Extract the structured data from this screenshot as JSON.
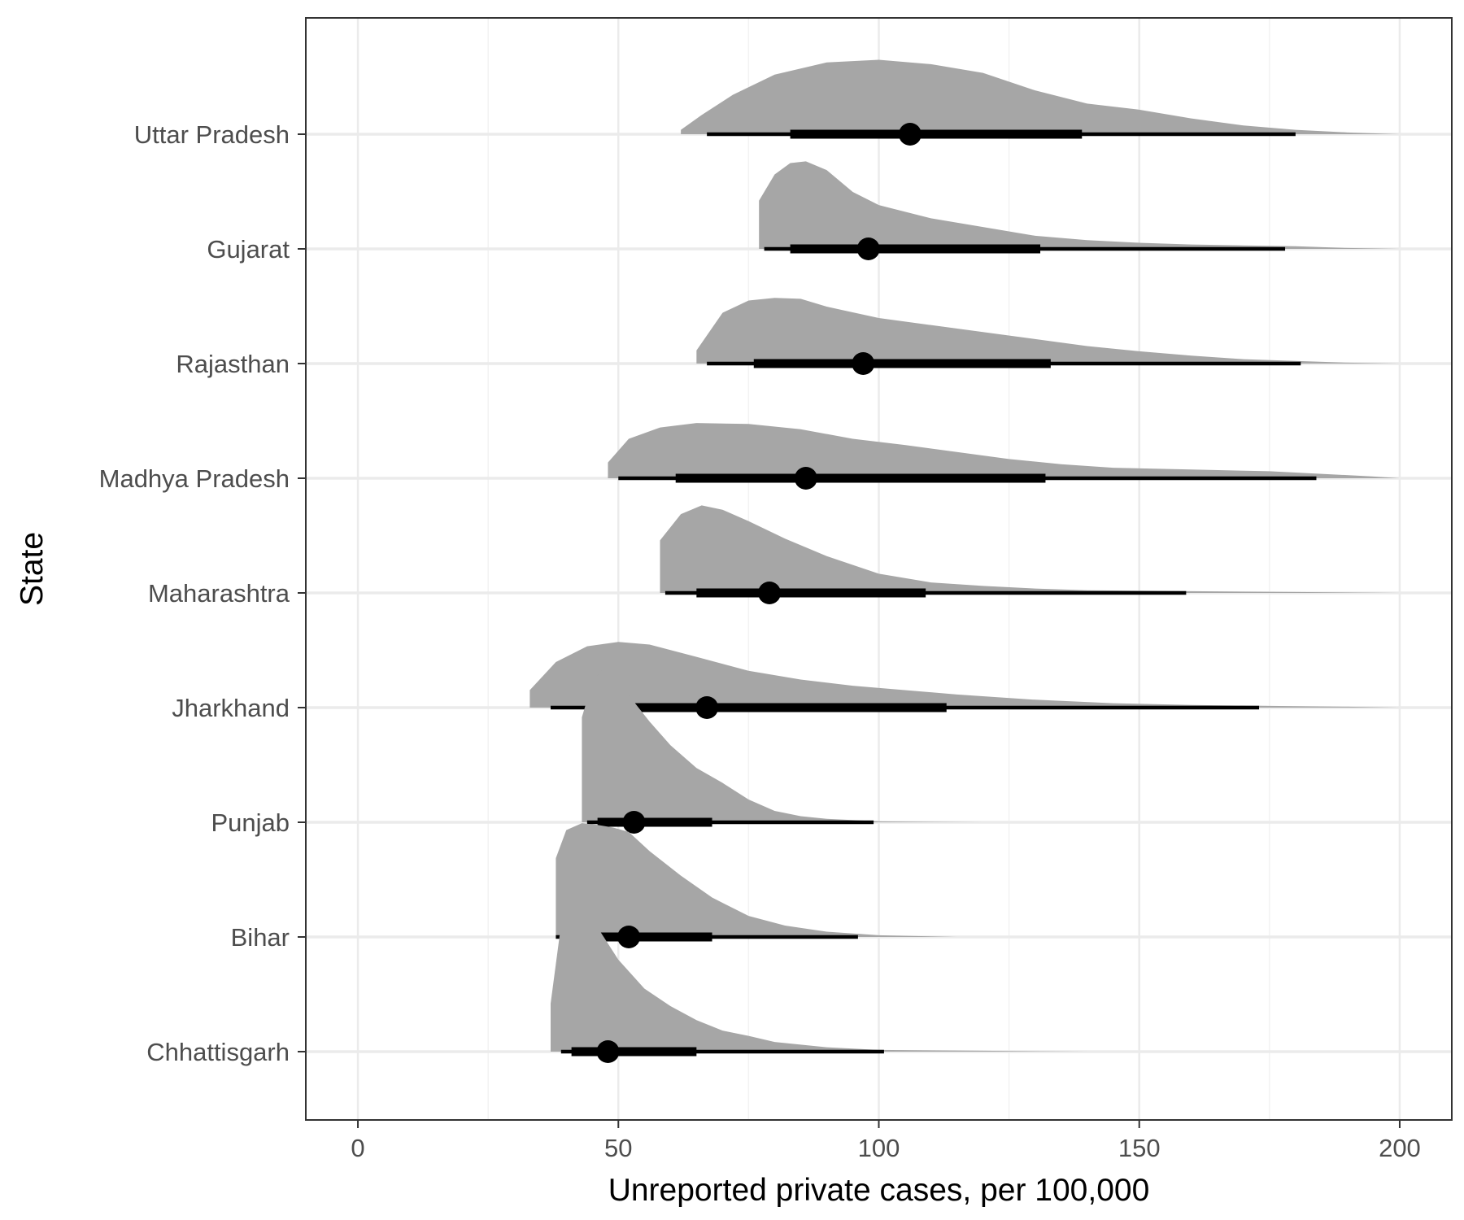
{
  "chart_data": {
    "type": "halfeye",
    "title": "",
    "xlabel": "Unreported private cases, per 100,000",
    "ylabel": "State",
    "xlim": [
      -10,
      210
    ],
    "xticks": [
      0,
      50,
      100,
      150,
      200
    ],
    "grid": true,
    "legend": "none",
    "colors": {
      "density": "#a6a6a6",
      "interval": "#000000",
      "grid_major": "#ebebeb",
      "grid_minor": "#f2f2f2",
      "panel_border": "#333333"
    },
    "categories": [
      "Uttar Pradesh",
      "Gujarat",
      "Rajasthan",
      "Madhya Pradesh",
      "Maharashtra",
      "Jharkhand",
      "Punjab",
      "Bihar",
      "Chhattisgarh"
    ],
    "series": [
      {
        "state": "Uttar Pradesh",
        "median": 106,
        "interval_66": [
          83,
          139
        ],
        "interval_95": [
          67,
          180
        ],
        "density_range": [
          62,
          200
        ],
        "density": [
          [
            62,
            0.05
          ],
          [
            66,
            0.22
          ],
          [
            72,
            0.45
          ],
          [
            80,
            0.68
          ],
          [
            90,
            0.82
          ],
          [
            100,
            0.85
          ],
          [
            110,
            0.8
          ],
          [
            120,
            0.7
          ],
          [
            130,
            0.5
          ],
          [
            140,
            0.35
          ],
          [
            150,
            0.28
          ],
          [
            160,
            0.18
          ],
          [
            170,
            0.1
          ],
          [
            180,
            0.05
          ],
          [
            190,
            0.02
          ],
          [
            200,
            0.0
          ]
        ]
      },
      {
        "state": "Gujarat",
        "median": 98,
        "interval_66": [
          83,
          131
        ],
        "interval_95": [
          78,
          178
        ],
        "density_range": [
          77,
          200
        ],
        "density": [
          [
            77,
            0.55
          ],
          [
            80,
            0.85
          ],
          [
            83,
            0.98
          ],
          [
            86,
            1.0
          ],
          [
            90,
            0.9
          ],
          [
            95,
            0.65
          ],
          [
            100,
            0.5
          ],
          [
            110,
            0.35
          ],
          [
            120,
            0.25
          ],
          [
            130,
            0.15
          ],
          [
            140,
            0.1
          ],
          [
            150,
            0.07
          ],
          [
            160,
            0.05
          ],
          [
            170,
            0.04
          ],
          [
            180,
            0.03
          ],
          [
            190,
            0.01
          ],
          [
            200,
            0.0
          ]
        ]
      },
      {
        "state": "Rajasthan",
        "median": 97,
        "interval_66": [
          76,
          133
        ],
        "interval_95": [
          67,
          181
        ],
        "density_range": [
          65,
          200
        ],
        "density": [
          [
            65,
            0.15
          ],
          [
            70,
            0.58
          ],
          [
            75,
            0.72
          ],
          [
            80,
            0.75
          ],
          [
            85,
            0.74
          ],
          [
            90,
            0.65
          ],
          [
            100,
            0.52
          ],
          [
            110,
            0.44
          ],
          [
            120,
            0.36
          ],
          [
            130,
            0.28
          ],
          [
            140,
            0.2
          ],
          [
            150,
            0.14
          ],
          [
            160,
            0.09
          ],
          [
            170,
            0.05
          ],
          [
            180,
            0.03
          ],
          [
            190,
            0.01
          ],
          [
            200,
            0.0
          ]
        ]
      },
      {
        "state": "Madhya Pradesh",
        "median": 86,
        "interval_66": [
          61,
          132
        ],
        "interval_95": [
          50,
          184
        ],
        "density_range": [
          48,
          200
        ],
        "density": [
          [
            48,
            0.18
          ],
          [
            52,
            0.45
          ],
          [
            58,
            0.58
          ],
          [
            65,
            0.63
          ],
          [
            75,
            0.62
          ],
          [
            85,
            0.56
          ],
          [
            95,
            0.45
          ],
          [
            105,
            0.38
          ],
          [
            115,
            0.3
          ],
          [
            125,
            0.22
          ],
          [
            135,
            0.16
          ],
          [
            145,
            0.12
          ],
          [
            160,
            0.1
          ],
          [
            175,
            0.08
          ],
          [
            185,
            0.05
          ],
          [
            195,
            0.02
          ],
          [
            200,
            0.0
          ]
        ]
      },
      {
        "state": "Maharashtra",
        "median": 79,
        "interval_66": [
          65,
          109
        ],
        "interval_95": [
          59,
          159
        ],
        "density_range": [
          58,
          200
        ],
        "density": [
          [
            58,
            0.6
          ],
          [
            62,
            0.9
          ],
          [
            66,
            1.0
          ],
          [
            70,
            0.95
          ],
          [
            75,
            0.82
          ],
          [
            82,
            0.62
          ],
          [
            90,
            0.42
          ],
          [
            100,
            0.22
          ],
          [
            110,
            0.12
          ],
          [
            120,
            0.08
          ],
          [
            130,
            0.05
          ],
          [
            140,
            0.03
          ],
          [
            160,
            0.02
          ],
          [
            180,
            0.01
          ],
          [
            200,
            0.0
          ]
        ]
      },
      {
        "state": "Jharkhand",
        "median": 67,
        "interval_66": [
          46,
          113
        ],
        "interval_95": [
          37,
          173
        ],
        "density_range": [
          33,
          200
        ],
        "density": [
          [
            33,
            0.2
          ],
          [
            38,
            0.52
          ],
          [
            44,
            0.7
          ],
          [
            50,
            0.75
          ],
          [
            56,
            0.72
          ],
          [
            65,
            0.58
          ],
          [
            75,
            0.42
          ],
          [
            85,
            0.32
          ],
          [
            95,
            0.25
          ],
          [
            105,
            0.2
          ],
          [
            115,
            0.15
          ],
          [
            130,
            0.09
          ],
          [
            145,
            0.05
          ],
          [
            160,
            0.03
          ],
          [
            175,
            0.02
          ],
          [
            190,
            0.01
          ],
          [
            200,
            0.0
          ]
        ]
      },
      {
        "state": "Punjab",
        "median": 53,
        "interval_66": [
          46,
          68
        ],
        "interval_95": [
          44,
          99
        ],
        "density_range": [
          43,
          200
        ],
        "density": [
          [
            43,
            1.2
          ],
          [
            45,
            1.6
          ],
          [
            47,
            1.75
          ],
          [
            49,
            1.7
          ],
          [
            52,
            1.45
          ],
          [
            56,
            1.15
          ],
          [
            60,
            0.88
          ],
          [
            65,
            0.62
          ],
          [
            70,
            0.45
          ],
          [
            75,
            0.26
          ],
          [
            80,
            0.13
          ],
          [
            85,
            0.07
          ],
          [
            90,
            0.04
          ],
          [
            100,
            0.01
          ],
          [
            120,
            0.0
          ],
          [
            200,
            0.0
          ]
        ]
      },
      {
        "state": "Bihar",
        "median": 52,
        "interval_66": [
          43,
          68
        ],
        "interval_95": [
          38,
          96
        ],
        "density_range": [
          38,
          200
        ],
        "density": [
          [
            38,
            0.9
          ],
          [
            40,
            1.22
          ],
          [
            43,
            1.3
          ],
          [
            46,
            1.28
          ],
          [
            49,
            1.25
          ],
          [
            52,
            1.2
          ],
          [
            56,
            0.98
          ],
          [
            62,
            0.7
          ],
          [
            68,
            0.45
          ],
          [
            75,
            0.24
          ],
          [
            82,
            0.13
          ],
          [
            90,
            0.06
          ],
          [
            100,
            0.02
          ],
          [
            115,
            0.0
          ],
          [
            200,
            0.0
          ]
        ]
      },
      {
        "state": "Chhattisgarh",
        "median": 48,
        "interval_66": [
          41,
          65
        ],
        "interval_95": [
          39,
          101
        ],
        "density_range": [
          37,
          200
        ],
        "density": [
          [
            37,
            0.55
          ],
          [
            39,
            1.45
          ],
          [
            41,
            1.8
          ],
          [
            43,
            1.75
          ],
          [
            46,
            1.42
          ],
          [
            50,
            1.05
          ],
          [
            55,
            0.72
          ],
          [
            60,
            0.52
          ],
          [
            65,
            0.36
          ],
          [
            70,
            0.24
          ],
          [
            75,
            0.18
          ],
          [
            80,
            0.11
          ],
          [
            90,
            0.05
          ],
          [
            100,
            0.02
          ],
          [
            120,
            0.01
          ],
          [
            140,
            0.0
          ],
          [
            200,
            0.0
          ]
        ]
      }
    ]
  }
}
